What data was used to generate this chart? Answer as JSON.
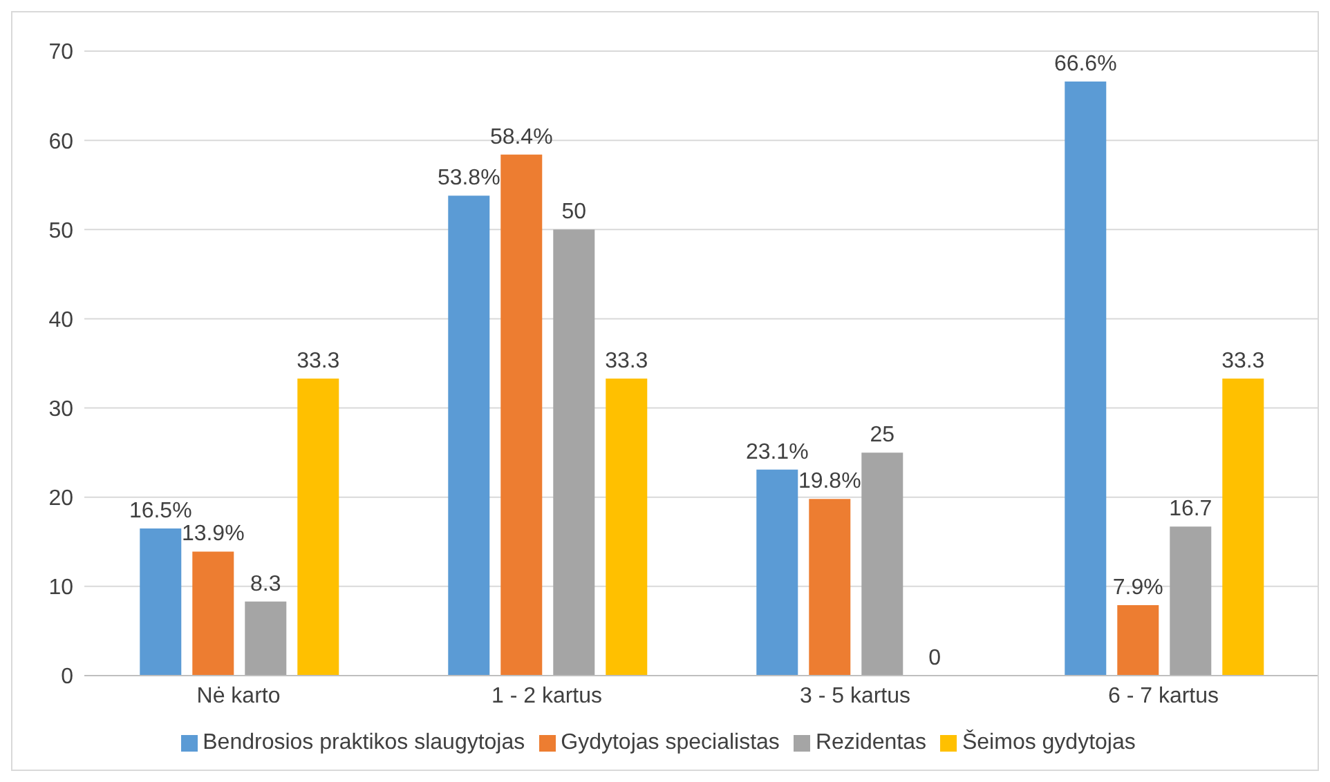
{
  "chart_data": {
    "type": "bar",
    "categories": [
      "Nė karto",
      "1 - 2 kartus",
      "3 - 5 kartus",
      "6 - 7 kartus"
    ],
    "series": [
      {
        "name": "Bendrosios praktikos slaugytojas",
        "color": "#5b9bd5",
        "values": [
          16.5,
          53.8,
          23.1,
          66.6
        ],
        "value_labels": [
          "16.5%",
          "53.8%",
          "23.1%",
          "66.6%"
        ]
      },
      {
        "name": "Gydytojas specialistas",
        "color": "#ed7d31",
        "values": [
          13.9,
          58.4,
          19.8,
          7.9
        ],
        "value_labels": [
          "13.9%",
          "58.4%",
          "19.8%",
          "7.9%"
        ]
      },
      {
        "name": "Rezidentas",
        "color": "#a5a5a5",
        "values": [
          8.3,
          50,
          25,
          16.7
        ],
        "value_labels": [
          "8.3",
          "50",
          "25",
          "16.7"
        ]
      },
      {
        "name": "Šeimos gydytojas",
        "color": "#ffc000",
        "values": [
          33.3,
          33.3,
          0,
          33.3
        ],
        "value_labels": [
          "33.3",
          "33.3",
          "0",
          "33.3"
        ]
      }
    ],
    "ylim": [
      0,
      70
    ],
    "yticks": [
      0,
      10,
      20,
      30,
      40,
      50,
      60,
      70
    ],
    "grid": "y",
    "legend": "bottom"
  }
}
